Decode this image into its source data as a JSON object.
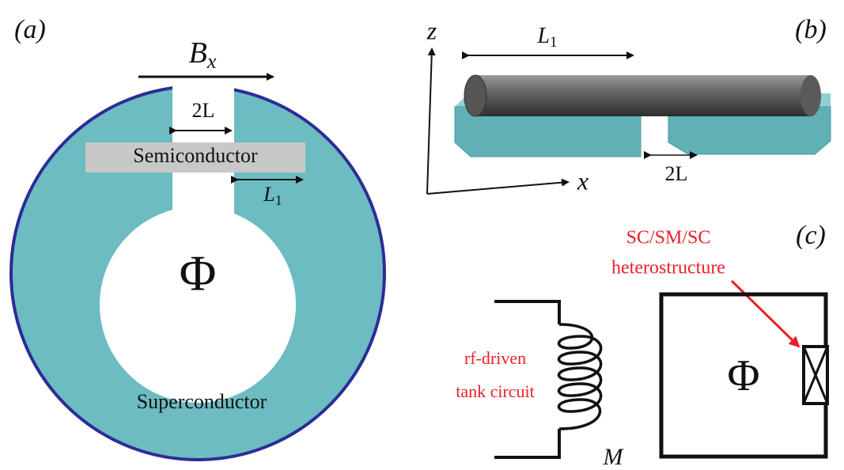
{
  "panel_a": {
    "label": "(a)",
    "field": {
      "main": "B",
      "sub": "x"
    },
    "gap": "2L",
    "semiconductor": "Semiconductor",
    "length": {
      "main": "L",
      "sub": "1"
    },
    "flux": "Φ",
    "superconductor": "Superconductor"
  },
  "panel_b": {
    "label": "(b)",
    "z_axis": "z",
    "x_axis": "x",
    "length": {
      "main": "L",
      "sub": "1"
    },
    "gap": "2L"
  },
  "panel_c": {
    "label": "(c)",
    "junction_line1": "SC/SM/SC",
    "junction_line2": "heterostructure",
    "tank_line1": "rf-driven",
    "tank_line2": "tank circuit",
    "flux": "Φ",
    "mutual": "M"
  }
}
